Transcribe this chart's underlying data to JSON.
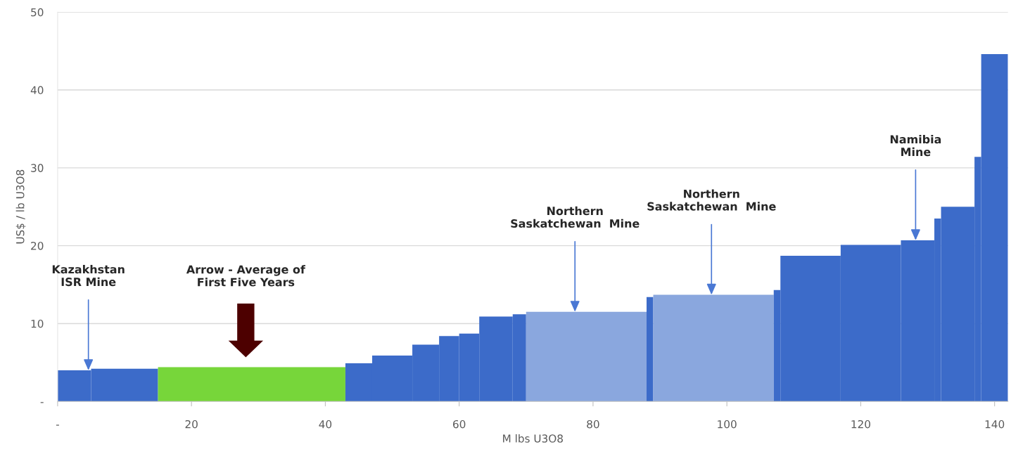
{
  "chart_data": {
    "type": "histogram",
    "xlabel": "M lbs U3O8",
    "ylabel": "US$ / lb U3O8",
    "bins": [
      0,
      5,
      15,
      43,
      47,
      53,
      57,
      60,
      63,
      68,
      70,
      88,
      89,
      107,
      108,
      117,
      126,
      131,
      132,
      137,
      138,
      142
    ],
    "values": [
      4.0,
      4.2,
      4.4,
      4.9,
      5.9,
      7.3,
      8.4,
      8.7,
      10.9,
      11.2,
      11.5,
      13.4,
      13.7,
      14.3,
      18.7,
      20.1,
      20.7,
      23.5,
      25.0,
      31.4,
      44.6
    ],
    "colors": [
      "#3c6bc9",
      "#3c6bc9",
      "#77d63a",
      "#3c6bc9",
      "#3c6bc9",
      "#3c6bc9",
      "#3c6bc9",
      "#3c6bc9",
      "#3c6bc9",
      "#3c6bc9",
      "#8aa7de",
      "#3c6bc9",
      "#8aa7de",
      "#3c6bc9",
      "#3c6bc9",
      "#3c6bc9",
      "#3c6bc9",
      "#3c6bc9",
      "#3c6bc9",
      "#3c6bc9",
      "#3c6bc9"
    ],
    "xlim": [
      0,
      142
    ],
    "ylim": [
      0,
      50
    ],
    "xticks": [
      {
        "value": 0,
        "label": "-"
      },
      20,
      40,
      60,
      80,
      100,
      120,
      140
    ],
    "yticks": [
      {
        "value": 0,
        "label": "-"
      },
      10,
      20,
      30,
      40,
      50
    ],
    "grid": "y",
    "annotations": [
      {
        "text": "Kazakhstan\nISR Mine",
        "x": 4.6,
        "y": 4.0
      },
      "Arrow - Average of\nFirst Five Years",
      {
        "text": "Northern\nSaskatchewan  Mine",
        "x": 77.3,
        "y": 11.5
      },
      {
        "text": "Northern\nSaskatchewan  Mine",
        "x": 97.7,
        "y": 13.7
      },
      {
        "text": "Namibia\nMine",
        "x": 128.2,
        "y": 20.7
      }
    ]
  }
}
